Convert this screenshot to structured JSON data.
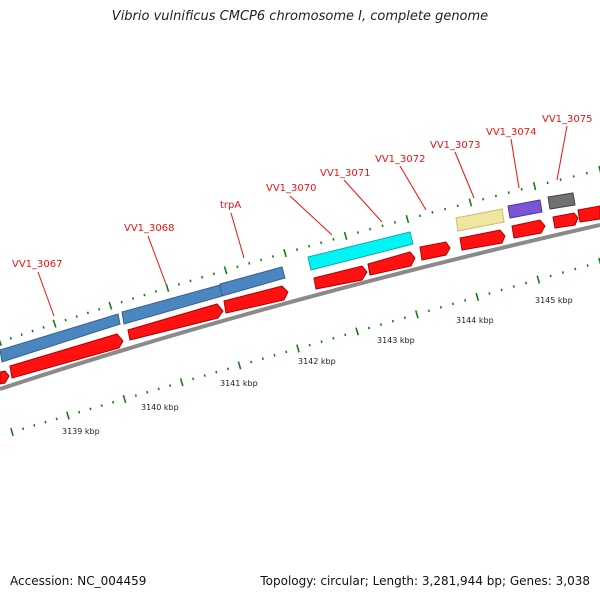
{
  "title": "Vibrio vulnificus CMCP6 chromosome I, complete genome",
  "footer": {
    "accession": "Accession: NC_004459",
    "stats": "Topology: circular; Length: 3,281,944 bp; Genes: 3,038"
  },
  "colors": {
    "backbone": "#8a8a8a",
    "cds": "#ff1111",
    "tick": "#1a7a1a",
    "label": "#ee1111"
  },
  "scale_labels": [
    "3139 kbp",
    "3140 kbp",
    "3141 kbp",
    "3142 kbp",
    "3143 kbp",
    "3144 kbp",
    "3145 kbp"
  ],
  "gene_labels": [
    "VV1_3067",
    "VV1_3068",
    "trpA",
    "VV1_3070",
    "VV1_3071",
    "VV1_3072",
    "VV1_3073",
    "VV1_3074",
    "VV1_3075"
  ]
}
